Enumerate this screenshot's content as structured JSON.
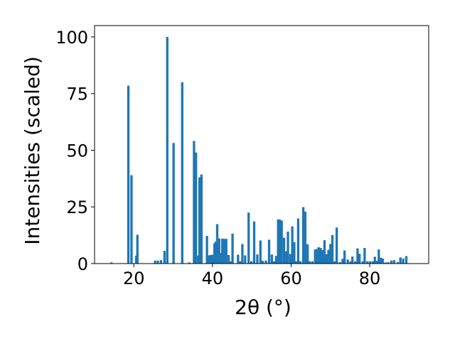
{
  "chart_data": {
    "type": "bar",
    "xlabel": "2θ (°)",
    "ylabel": "Intensities (scaled)",
    "xlim": [
      10,
      95
    ],
    "ylim": [
      0,
      105
    ],
    "xticks": [
      20,
      40,
      60,
      80
    ],
    "yticks": [
      0,
      25,
      50,
      75,
      100
    ],
    "xtick_labels": [
      "20",
      "40",
      "60",
      "80"
    ],
    "ytick_labels": [
      "0",
      "25",
      "50",
      "75",
      "100"
    ],
    "bar_width": 0.6,
    "grid": false,
    "color": "#1f77b4",
    "peaks": [
      [
        14.3,
        0.5
      ],
      [
        18.6,
        78.5
      ],
      [
        19.4,
        39.0
      ],
      [
        20.6,
        3.5
      ],
      [
        20.9,
        12.7
      ],
      [
        25.4,
        1.3
      ],
      [
        26.1,
        1.3
      ],
      [
        26.9,
        1.5
      ],
      [
        27.8,
        5.6
      ],
      [
        28.5,
        100.0
      ],
      [
        30.1,
        53.2
      ],
      [
        32.3,
        80.0
      ],
      [
        34.1,
        0.5
      ],
      [
        35.3,
        54.1
      ],
      [
        35.8,
        49.0
      ],
      [
        36.4,
        3.5
      ],
      [
        36.7,
        38.0
      ],
      [
        37.2,
        39.3
      ],
      [
        38.6,
        12.2
      ],
      [
        39.1,
        3.6
      ],
      [
        39.5,
        3.8
      ],
      [
        40.0,
        3.9
      ],
      [
        40.5,
        8.9
      ],
      [
        40.8,
        9.7
      ],
      [
        41.2,
        17.4
      ],
      [
        41.7,
        11.1
      ],
      [
        42.1,
        4.6
      ],
      [
        42.5,
        11.0
      ],
      [
        43.0,
        10.9
      ],
      [
        43.5,
        10.9
      ],
      [
        44.1,
        3.8
      ],
      [
        44.6,
        1.0
      ],
      [
        45.1,
        13.2
      ],
      [
        46.5,
        3.9
      ],
      [
        47.1,
        1.0
      ],
      [
        47.6,
        8.6
      ],
      [
        48.3,
        3.6
      ],
      [
        49.2,
        22.5
      ],
      [
        49.9,
        1.0
      ],
      [
        50.6,
        18.6
      ],
      [
        51.4,
        4.0
      ],
      [
        52.2,
        10.2
      ],
      [
        52.8,
        1.2
      ],
      [
        53.6,
        1.3
      ],
      [
        54.4,
        10.5
      ],
      [
        55.1,
        4.0
      ],
      [
        55.7,
        1.0
      ],
      [
        56.2,
        3.4
      ],
      [
        56.7,
        19.5
      ],
      [
        57.1,
        19.4
      ],
      [
        57.6,
        19.0
      ],
      [
        58.2,
        11.4
      ],
      [
        58.7,
        5.4
      ],
      [
        59.2,
        14.1
      ],
      [
        59.8,
        4.2
      ],
      [
        60.3,
        16.4
      ],
      [
        60.8,
        9.4
      ],
      [
        61.3,
        1.0
      ],
      [
        61.8,
        19.9
      ],
      [
        62.4,
        1.0
      ],
      [
        63.1,
        24.9
      ],
      [
        63.6,
        22.9
      ],
      [
        64.2,
        8.5
      ],
      [
        64.7,
        1.0
      ],
      [
        65.4,
        1.0
      ],
      [
        66.1,
        6.2
      ],
      [
        66.6,
        6.4
      ],
      [
        67.0,
        7.2
      ],
      [
        67.5,
        6.9
      ],
      [
        68.0,
        6.0
      ],
      [
        68.5,
        10.3
      ],
      [
        69.0,
        4.1
      ],
      [
        69.5,
        6.1
      ],
      [
        70.0,
        8.6
      ],
      [
        70.5,
        12.6
      ],
      [
        71.1,
        1.0
      ],
      [
        71.6,
        15.9
      ],
      [
        72.4,
        0.6
      ],
      [
        73.1,
        2.1
      ],
      [
        73.6,
        5.8
      ],
      [
        74.4,
        1.8
      ],
      [
        75.1,
        1.0
      ],
      [
        75.6,
        3.1
      ],
      [
        76.3,
        1.0
      ],
      [
        76.9,
        6.7
      ],
      [
        77.4,
        4.3
      ],
      [
        78.2,
        1.0
      ],
      [
        78.7,
        6.9
      ],
      [
        79.4,
        1.0
      ],
      [
        80.1,
        1.0
      ],
      [
        80.8,
        1.0
      ],
      [
        81.3,
        3.0
      ],
      [
        81.8,
        1.2
      ],
      [
        82.3,
        6.2
      ],
      [
        82.8,
        2.6
      ],
      [
        83.3,
        2.2
      ],
      [
        84.0,
        0.5
      ],
      [
        84.7,
        0.6
      ],
      [
        85.5,
        1.3
      ],
      [
        86.2,
        1.5
      ],
      [
        87.1,
        0.6
      ],
      [
        87.8,
        2.7
      ],
      [
        88.5,
        2.2
      ],
      [
        89.3,
        3.3
      ]
    ]
  }
}
